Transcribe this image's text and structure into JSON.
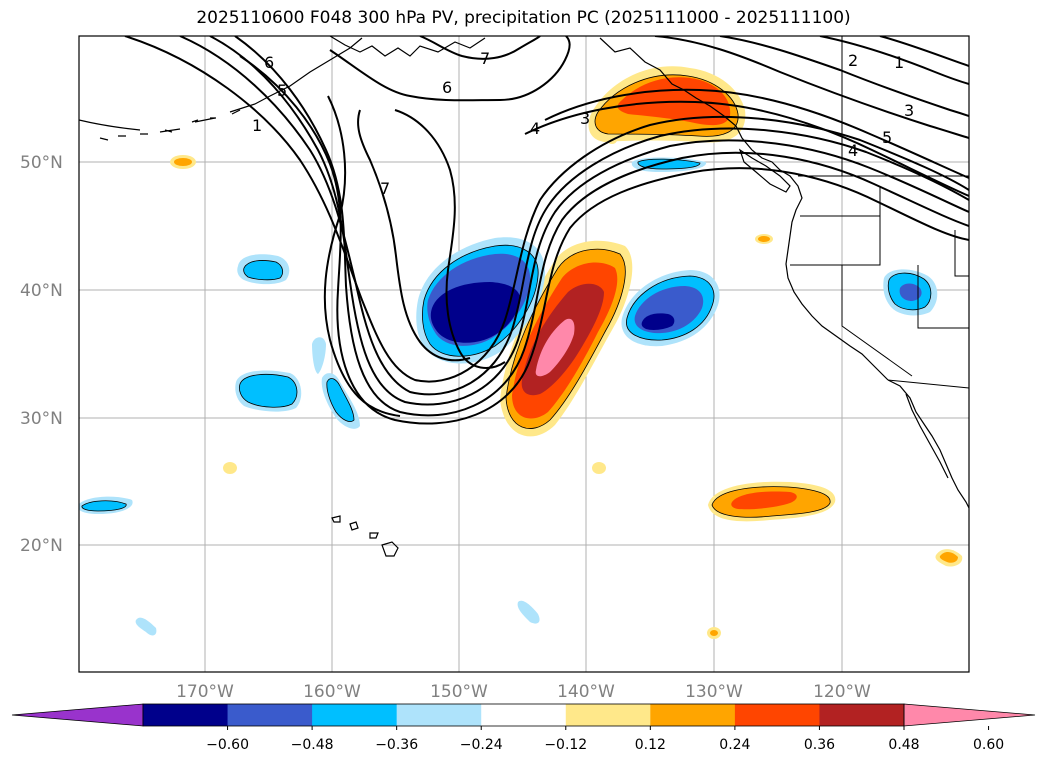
{
  "title": "2025110600 F048 300 hPa PV, precipitation PC (2025111000 - 2025111100)",
  "lat_labels": [
    "50°N",
    "40°N",
    "30°N",
    "20°N"
  ],
  "lon_labels": [
    "170°W",
    "160°W",
    "150°W",
    "140°W",
    "130°W",
    "120°W"
  ],
  "colorbar": {
    "colors": [
      "#9933cc",
      "#00008b",
      "#3a5bcc",
      "#00bfff",
      "#aee3fb",
      "#ffffff",
      "#ffe88a",
      "#ffa500",
      "#ff4500",
      "#b22222",
      "#ff88aa"
    ],
    "ticks": [
      "−0.60",
      "−0.48",
      "−0.36",
      "−0.24",
      "−0.12",
      "0.12",
      "0.24",
      "0.36",
      "0.48",
      "0.60"
    ]
  },
  "contour_labels": [
    "6",
    "5",
    "1",
    "7",
    "6",
    "7",
    "4",
    "3",
    "2",
    "1",
    "3",
    "5",
    "4"
  ]
}
